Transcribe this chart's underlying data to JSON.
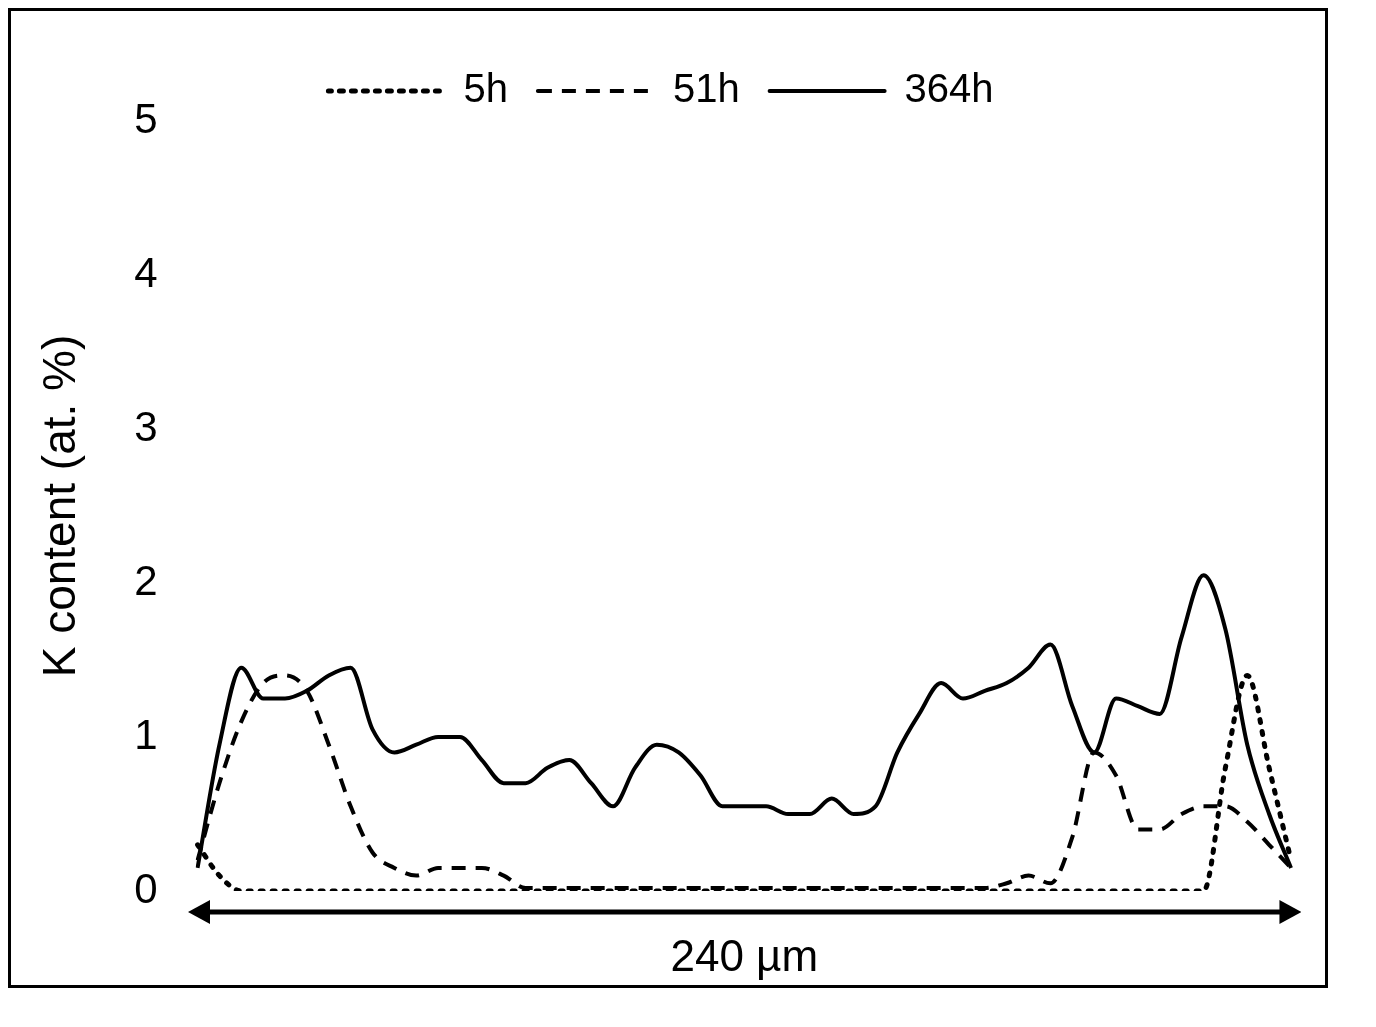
{
  "chart_data": {
    "type": "line",
    "ylabel": "K content (at. %)",
    "categories": [
      null,
      null,
      null,
      null,
      null,
      null,
      null,
      null,
      null,
      null,
      null,
      null,
      null,
      null,
      null,
      null,
      null,
      null,
      null,
      null,
      null,
      null,
      null,
      null,
      null,
      null,
      null,
      null,
      null,
      null,
      null,
      null,
      null,
      null,
      null,
      null,
      null,
      null,
      null,
      null,
      null,
      null,
      null,
      null,
      null,
      null,
      null,
      null,
      null,
      null,
      null
    ],
    "series": [
      {
        "name": "5h",
        "color": "#000000",
        "line_style": "dotted",
        "values": [
          0.3,
          0.1,
          0,
          0,
          0,
          0,
          0,
          0,
          0,
          0,
          0,
          0,
          0,
          0,
          0,
          0,
          0,
          0,
          0,
          0,
          0,
          0,
          0,
          0,
          0,
          0,
          0,
          0,
          0,
          0,
          0,
          0,
          0,
          0,
          0,
          0,
          0,
          0,
          0,
          0,
          0,
          0,
          0,
          0,
          0,
          0,
          0,
          0.8,
          1.4,
          0.8,
          0.2
        ]
      },
      {
        "name": "51h",
        "color": "#000000",
        "line_style": "dashed",
        "values": [
          0.2,
          0.7,
          1.1,
          1.35,
          1.4,
          1.3,
          0.95,
          0.55,
          0.25,
          0.15,
          0.1,
          0.15,
          0.15,
          0.15,
          0.1,
          0.02,
          0.02,
          0.02,
          0.02,
          0.02,
          0.02,
          0.02,
          0.02,
          0.02,
          0.02,
          0.02,
          0.02,
          0.02,
          0.02,
          0.02,
          0.02,
          0.02,
          0.02,
          0.02,
          0.02,
          0.02,
          0.02,
          0.05,
          0.1,
          0.05,
          0.35,
          0.9,
          0.75,
          0.4,
          0.4,
          0.5,
          0.55,
          0.55,
          0.45,
          0.3,
          0.15
        ]
      },
      {
        "name": "364h",
        "color": "#000000",
        "line_style": "solid",
        "values": [
          0.15,
          0.95,
          1.45,
          1.25,
          1.25,
          1.3,
          1.4,
          1.45,
          1.05,
          0.9,
          0.95,
          1,
          1,
          0.85,
          0.7,
          0.7,
          0.8,
          0.85,
          0.7,
          0.55,
          0.8,
          0.95,
          0.9,
          0.75,
          0.55,
          0.55,
          0.55,
          0.5,
          0.5,
          0.6,
          0.5,
          0.55,
          0.9,
          1.15,
          1.35,
          1.25,
          1.3,
          1.35,
          1.45,
          1.6,
          1.2,
          0.9,
          1.25,
          1.2,
          1.15,
          1.65,
          2.05,
          1.7,
          0.95,
          0.5,
          0.15
        ]
      }
    ],
    "ylim": [
      0,
      5
    ],
    "yticks": [
      0,
      1,
      2,
      3,
      4,
      5
    ],
    "grid": false,
    "legend": "top",
    "tick_labels": "y",
    "marker": "none",
    "annotations": [
      "240 µm"
    ]
  }
}
